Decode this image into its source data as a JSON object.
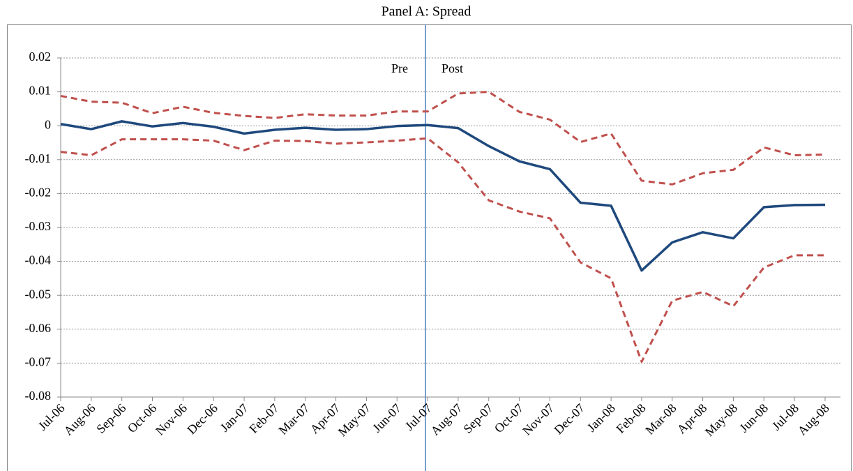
{
  "chart_data": {
    "type": "line",
    "title": "Panel A: Spread",
    "categories": [
      "Jul-06",
      "Aug-06",
      "Sep-06",
      "Oct-06",
      "Nov-06",
      "Dec-06",
      "Jan-07",
      "Feb-07",
      "Mar-07",
      "Apr-07",
      "May-07",
      "Jun-07",
      "Jul-07",
      "Aug-07",
      "Sep-07",
      "Oct-07",
      "Nov-07",
      "Dec-07",
      "Jan-08",
      "Feb-08",
      "Mar-08",
      "Apr-08",
      "May-08",
      "Jun-08",
      "Jul-08",
      "Aug-08"
    ],
    "series": [
      {
        "color": "#1f497d",
        "style": "solid",
        "values": [
          0.0005,
          -0.001,
          0.0013,
          -0.0002,
          0.0008,
          -0.0003,
          -0.0023,
          -0.0012,
          -0.0006,
          -0.0012,
          -0.001,
          -0.0001,
          0.0002,
          -0.0007,
          -0.006,
          -0.0105,
          -0.0128,
          -0.0227,
          -0.0236,
          -0.0427,
          -0.0344,
          -0.0314,
          -0.0332,
          -0.024,
          -0.0234,
          -0.0233
        ]
      },
      {
        "color": "#c0504d",
        "style": "dashed",
        "values": [
          0.0088,
          0.0071,
          0.0068,
          0.0037,
          0.0056,
          0.0038,
          0.0029,
          0.0023,
          0.0034,
          0.003,
          0.003,
          0.0042,
          0.0042,
          0.0095,
          0.01,
          0.0041,
          0.0018,
          -0.0048,
          -0.0023,
          -0.0162,
          -0.0173,
          -0.014,
          -0.013,
          -0.0064,
          -0.0087,
          -0.0085
        ]
      },
      {
        "color": "#c0504d",
        "style": "dashed",
        "values": [
          -0.0077,
          -0.0087,
          -0.004,
          -0.004,
          -0.004,
          -0.0044,
          -0.0072,
          -0.0044,
          -0.0045,
          -0.0053,
          -0.0049,
          -0.0044,
          -0.0037,
          -0.0108,
          -0.022,
          -0.0253,
          -0.0273,
          -0.0403,
          -0.045,
          -0.0696,
          -0.0516,
          -0.049,
          -0.0532,
          -0.0418,
          -0.0382,
          -0.0382
        ]
      }
    ],
    "annotations": [
      "Pre",
      "Post"
    ],
    "ylim": [
      -0.08,
      0.02
    ],
    "yticks": [
      0.02,
      0.01,
      0,
      -0.01,
      -0.02,
      -0.03,
      -0.04,
      -0.05,
      -0.06,
      -0.07,
      -0.08
    ],
    "grid": true,
    "legend": false
  }
}
